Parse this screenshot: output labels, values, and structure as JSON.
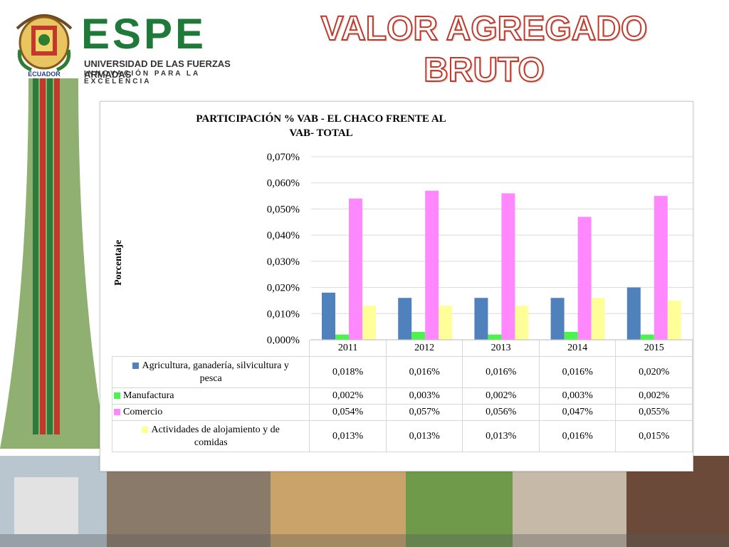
{
  "header": {
    "logo_text": "ESPE",
    "logo_subtitle": "UNIVERSIDAD DE LAS FUERZAS ARMADAS",
    "logo_motto": "INNOVACIÓN PARA LA EXCELENCIA",
    "crest_label": "ECUADOR",
    "slide_title": "VALOR AGREGADO BRUTO"
  },
  "chart_data": {
    "type": "bar",
    "title": "PARTICIPACIÓN  % VAB - EL CHACO FRENTE AL VAB- TOTAL",
    "title_line1": "PARTICIPACIÓN  % VAB - EL CHACO FRENTE AL",
    "title_line2": "VAB- TOTAL",
    "ylabel": "Porcentaje",
    "xlabel": "",
    "ylim": [
      0,
      0.07
    ],
    "yticks": [
      "0,000%",
      "0,010%",
      "0,020%",
      "0,030%",
      "0,040%",
      "0,050%",
      "0,060%",
      "0,070%"
    ],
    "categories": [
      "2011",
      "2012",
      "2013",
      "2014",
      "2015"
    ],
    "grid": true,
    "legend_placement": "data-table-below",
    "series": [
      {
        "name": "Agricultura, ganadería, silvicultura y pesca",
        "color": "#4f81bd",
        "values": [
          0.018,
          0.016,
          0.016,
          0.016,
          0.02
        ],
        "labels": [
          "0,018%",
          "0,016%",
          "0,016%",
          "0,016%",
          "0,020%"
        ],
        "label_lines": [
          "Agricultura, ganadería, silvicultura y",
          "pesca"
        ]
      },
      {
        "name": "Manufactura",
        "color": "#4ef24e",
        "values": [
          0.002,
          0.003,
          0.002,
          0.003,
          0.002
        ],
        "labels": [
          "0,002%",
          "0,003%",
          "0,002%",
          "0,003%",
          "0,002%"
        ],
        "label_lines": [
          "Manufactura"
        ]
      },
      {
        "name": "Comercio",
        "color": "#ff88ff",
        "values": [
          0.054,
          0.057,
          0.056,
          0.047,
          0.055
        ],
        "labels": [
          "0,054%",
          "0,057%",
          "0,056%",
          "0,047%",
          "0,055%"
        ],
        "label_lines": [
          "Comercio"
        ]
      },
      {
        "name": "Actividades de alojamiento y de comidas",
        "color": "#ffff99",
        "values": [
          0.013,
          0.013,
          0.013,
          0.016,
          0.015
        ],
        "labels": [
          "0,013%",
          "0,013%",
          "0,013%",
          "0,016%",
          "0,015%"
        ],
        "label_lines": [
          "Actividades de alojamiento y de",
          "comidas"
        ]
      }
    ]
  }
}
